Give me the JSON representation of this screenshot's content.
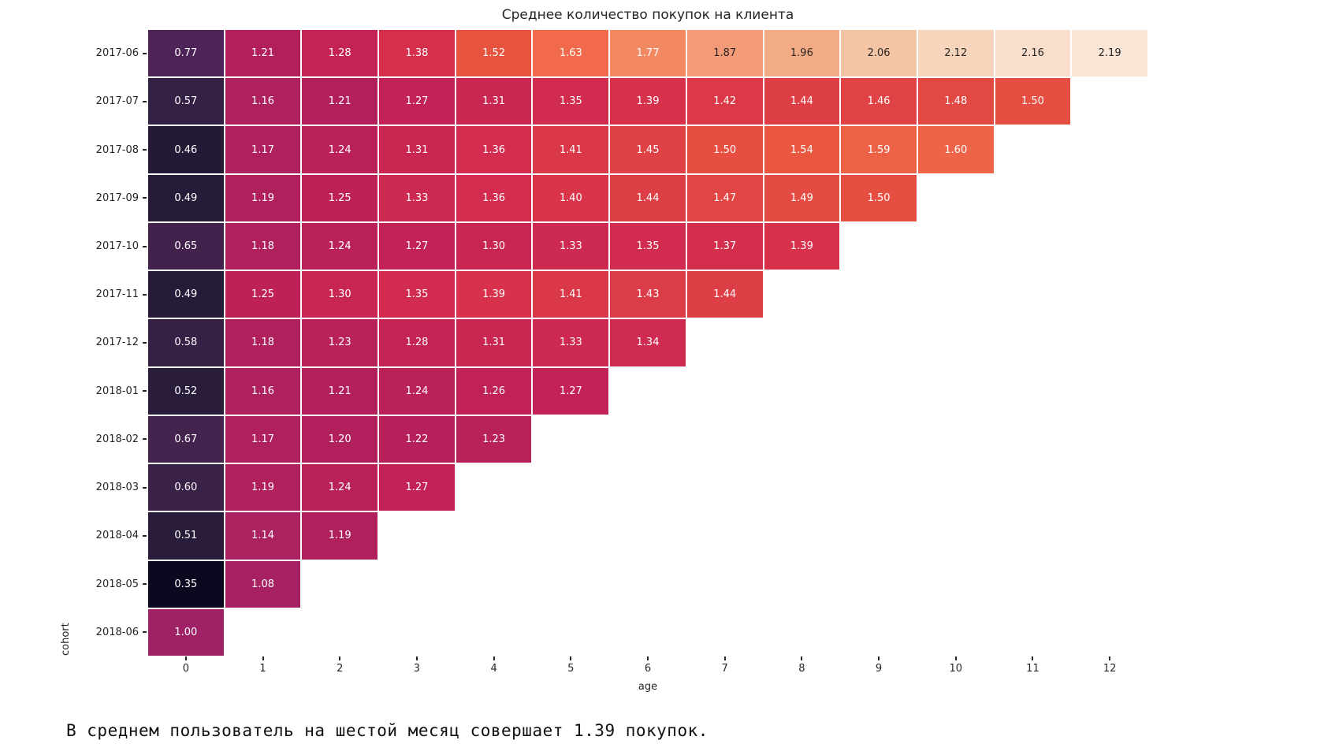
{
  "chart_data": {
    "type": "heatmap",
    "title": "Среднее количество покупок на клиента",
    "xlabel": "age",
    "ylabel": "cohort",
    "x_tick_labels": [
      "0",
      "1",
      "2",
      "3",
      "4",
      "5",
      "6",
      "7",
      "8",
      "9",
      "10",
      "11",
      "12"
    ],
    "rows": [
      {
        "cohort": "2017-06",
        "values": [
          0.77,
          1.21,
          1.28,
          1.38,
          1.52,
          1.63,
          1.77,
          1.87,
          1.96,
          2.06,
          2.12,
          2.16,
          2.19
        ]
      },
      {
        "cohort": "2017-07",
        "values": [
          0.57,
          1.16,
          1.21,
          1.27,
          1.31,
          1.35,
          1.39,
          1.42,
          1.44,
          1.46,
          1.48,
          1.5
        ]
      },
      {
        "cohort": "2017-08",
        "values": [
          0.46,
          1.17,
          1.24,
          1.31,
          1.36,
          1.41,
          1.45,
          1.5,
          1.54,
          1.59,
          1.6
        ]
      },
      {
        "cohort": "2017-09",
        "values": [
          0.49,
          1.19,
          1.25,
          1.33,
          1.36,
          1.4,
          1.44,
          1.47,
          1.49,
          1.5
        ]
      },
      {
        "cohort": "2017-10",
        "values": [
          0.65,
          1.18,
          1.24,
          1.27,
          1.3,
          1.33,
          1.35,
          1.37,
          1.39
        ]
      },
      {
        "cohort": "2017-11",
        "values": [
          0.49,
          1.25,
          1.3,
          1.35,
          1.39,
          1.41,
          1.43,
          1.44
        ]
      },
      {
        "cohort": "2017-12",
        "values": [
          0.58,
          1.18,
          1.23,
          1.28,
          1.31,
          1.33,
          1.34
        ]
      },
      {
        "cohort": "2018-01",
        "values": [
          0.52,
          1.16,
          1.21,
          1.24,
          1.26,
          1.27
        ]
      },
      {
        "cohort": "2018-02",
        "values": [
          0.67,
          1.17,
          1.2,
          1.22,
          1.23
        ]
      },
      {
        "cohort": "2018-03",
        "values": [
          0.6,
          1.19,
          1.24,
          1.27
        ]
      },
      {
        "cohort": "2018-04",
        "values": [
          0.51,
          1.14,
          1.19
        ]
      },
      {
        "cohort": "2018-05",
        "values": [
          0.35,
          1.08
        ]
      },
      {
        "cohort": "2018-06",
        "values": [
          1.0
        ]
      }
    ],
    "n_cols": 13,
    "vmin": 0.35,
    "vmax": 2.19,
    "value_format": "two_decimals",
    "colormap_name": "rocket",
    "colormap_stops": [
      [
        0.0,
        "#0B091F"
      ],
      [
        0.06,
        "#241A36"
      ],
      [
        0.087,
        "#281C3A"
      ],
      [
        0.12,
        "#342044"
      ],
      [
        0.136,
        "#3A2147"
      ],
      [
        0.174,
        "#45234F"
      ],
      [
        0.228,
        "#4E2357"
      ],
      [
        0.353,
        "#A02266"
      ],
      [
        0.467,
        "#B2205C"
      ],
      [
        0.505,
        "#C52255"
      ],
      [
        0.56,
        "#D62F4C"
      ],
      [
        0.636,
        "#E8533F"
      ],
      [
        0.696,
        "#F06A4B"
      ],
      [
        0.772,
        "#F28963"
      ],
      [
        0.826,
        "#F39B76"
      ],
      [
        0.875,
        "#F3AB85"
      ],
      [
        0.929,
        "#F5C4A5"
      ],
      [
        0.962,
        "#F7D4BC"
      ],
      [
        1.0,
        "#F9E6D7"
      ],
      [
        1.0,
        "#FAE7D8"
      ]
    ],
    "annotation_colors": {
      "on_dark": "#FFFFFF",
      "on_light": "#262626"
    },
    "grid_on": false,
    "legend": "none"
  },
  "footer": {
    "text": "В среднем пользователь на шестой месяц совершает 1.39 покупок."
  },
  "colors": {
    "background": "#FFFFFF",
    "axis_text": "#262626",
    "footer_text": "#111111",
    "cell_divider": "#FFFFFF"
  }
}
